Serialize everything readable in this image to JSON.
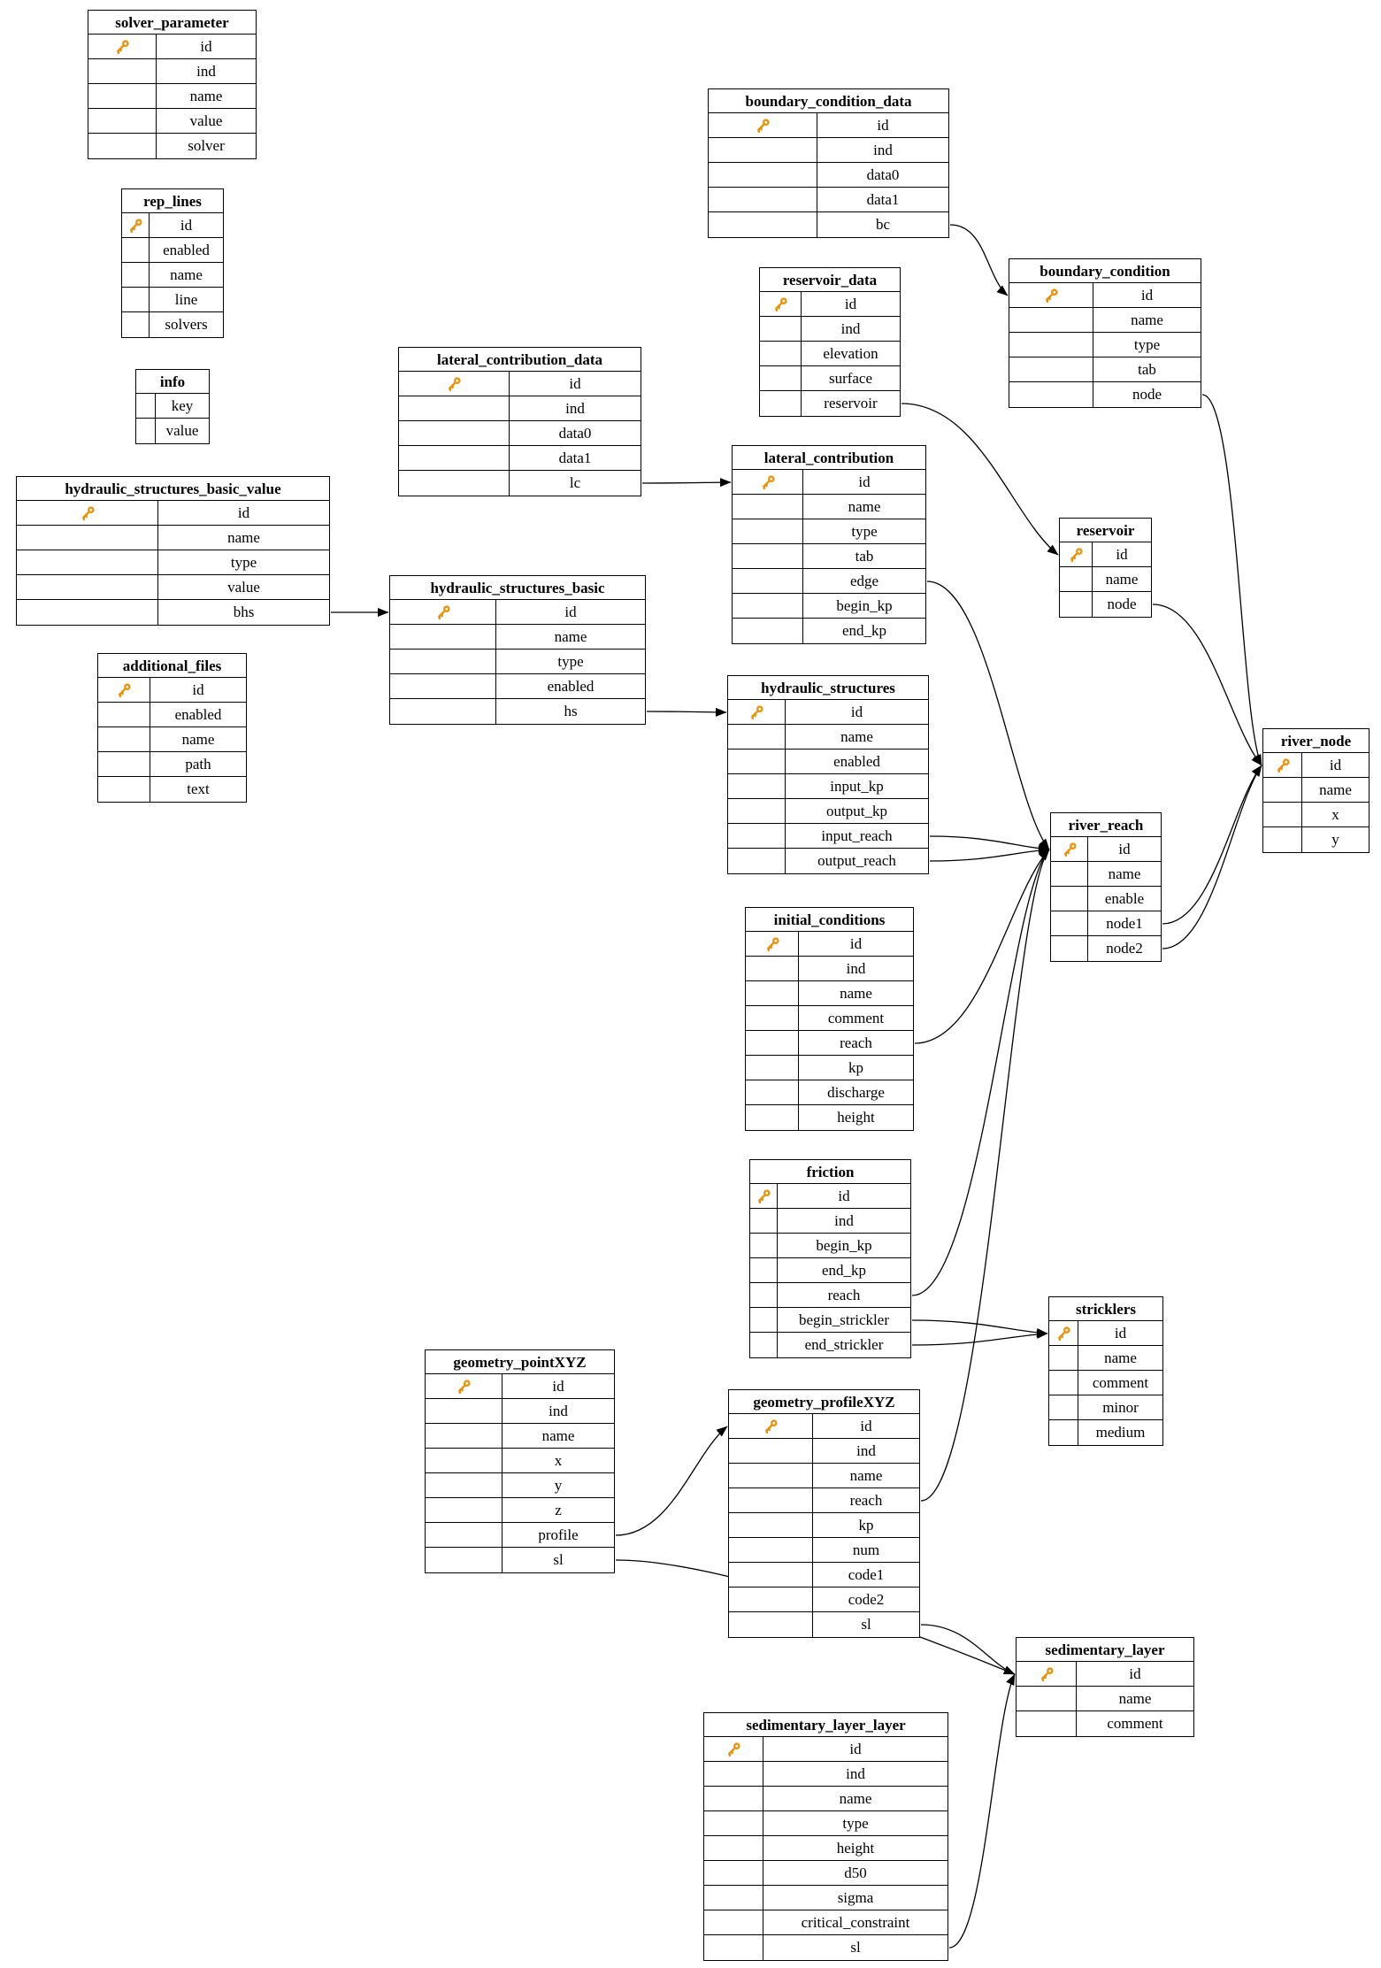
{
  "diagram": {
    "kind": "database-schema",
    "background": "#ffffff",
    "border_color": "#000000",
    "edge_color": "#000000",
    "key_icon_color": "#E8920E",
    "key_icon": "primary-key"
  },
  "tables": [
    {
      "name": "solver_parameter",
      "fields": [
        {
          "name": "id",
          "key": true
        },
        {
          "name": "ind"
        },
        {
          "name": "name"
        },
        {
          "name": "value"
        },
        {
          "name": "solver"
        }
      ]
    },
    {
      "name": "rep_lines",
      "fields": [
        {
          "name": "id",
          "key": true
        },
        {
          "name": "enabled"
        },
        {
          "name": "name"
        },
        {
          "name": "line"
        },
        {
          "name": "solvers"
        }
      ]
    },
    {
      "name": "info",
      "fields": [
        {
          "name": "key"
        },
        {
          "name": "value"
        }
      ]
    },
    {
      "name": "hydraulic_structures_basic_value",
      "fields": [
        {
          "name": "id",
          "key": true
        },
        {
          "name": "name"
        },
        {
          "name": "type"
        },
        {
          "name": "value"
        },
        {
          "name": "bhs"
        }
      ]
    },
    {
      "name": "additional_files",
      "fields": [
        {
          "name": "id",
          "key": true
        },
        {
          "name": "enabled"
        },
        {
          "name": "name"
        },
        {
          "name": "path"
        },
        {
          "name": "text"
        }
      ]
    },
    {
      "name": "lateral_contribution_data",
      "fields": [
        {
          "name": "id",
          "key": true
        },
        {
          "name": "ind"
        },
        {
          "name": "data0"
        },
        {
          "name": "data1"
        },
        {
          "name": "lc"
        }
      ]
    },
    {
      "name": "hydraulic_structures_basic",
      "fields": [
        {
          "name": "id",
          "key": true
        },
        {
          "name": "name"
        },
        {
          "name": "type"
        },
        {
          "name": "enabled"
        },
        {
          "name": "hs"
        }
      ]
    },
    {
      "name": "boundary_condition_data",
      "fields": [
        {
          "name": "id",
          "key": true
        },
        {
          "name": "ind"
        },
        {
          "name": "data0"
        },
        {
          "name": "data1"
        },
        {
          "name": "bc"
        }
      ]
    },
    {
      "name": "reservoir_data",
      "fields": [
        {
          "name": "id",
          "key": true
        },
        {
          "name": "ind"
        },
        {
          "name": "elevation"
        },
        {
          "name": "surface"
        },
        {
          "name": "reservoir"
        }
      ]
    },
    {
      "name": "boundary_condition",
      "fields": [
        {
          "name": "id",
          "key": true
        },
        {
          "name": "name"
        },
        {
          "name": "type"
        },
        {
          "name": "tab"
        },
        {
          "name": "node"
        }
      ]
    },
    {
      "name": "reservoir",
      "fields": [
        {
          "name": "id",
          "key": true
        },
        {
          "name": "name"
        },
        {
          "name": "node"
        }
      ]
    },
    {
      "name": "lateral_contribution",
      "fields": [
        {
          "name": "id",
          "key": true
        },
        {
          "name": "name"
        },
        {
          "name": "type"
        },
        {
          "name": "tab"
        },
        {
          "name": "edge"
        },
        {
          "name": "begin_kp"
        },
        {
          "name": "end_kp"
        }
      ]
    },
    {
      "name": "hydraulic_structures",
      "fields": [
        {
          "name": "id",
          "key": true
        },
        {
          "name": "name"
        },
        {
          "name": "enabled"
        },
        {
          "name": "input_kp"
        },
        {
          "name": "output_kp"
        },
        {
          "name": "input_reach"
        },
        {
          "name": "output_reach"
        }
      ]
    },
    {
      "name": "initial_conditions",
      "fields": [
        {
          "name": "id",
          "key": true
        },
        {
          "name": "ind"
        },
        {
          "name": "name"
        },
        {
          "name": "comment"
        },
        {
          "name": "reach"
        },
        {
          "name": "kp"
        },
        {
          "name": "discharge"
        },
        {
          "name": "height"
        }
      ]
    },
    {
      "name": "river_reach",
      "fields": [
        {
          "name": "id",
          "key": true
        },
        {
          "name": "name"
        },
        {
          "name": "enable"
        },
        {
          "name": "node1"
        },
        {
          "name": "node2"
        }
      ]
    },
    {
      "name": "river_node",
      "fields": [
        {
          "name": "id",
          "key": true
        },
        {
          "name": "name"
        },
        {
          "name": "x"
        },
        {
          "name": "y"
        }
      ]
    },
    {
      "name": "friction",
      "fields": [
        {
          "name": "id",
          "key": true
        },
        {
          "name": "ind"
        },
        {
          "name": "begin_kp"
        },
        {
          "name": "end_kp"
        },
        {
          "name": "reach"
        },
        {
          "name": "begin_strickler"
        },
        {
          "name": "end_strickler"
        }
      ]
    },
    {
      "name": "stricklers",
      "fields": [
        {
          "name": "id",
          "key": true
        },
        {
          "name": "name"
        },
        {
          "name": "comment"
        },
        {
          "name": "minor"
        },
        {
          "name": "medium"
        }
      ]
    },
    {
      "name": "geometry_pointXYZ",
      "fields": [
        {
          "name": "id",
          "key": true
        },
        {
          "name": "ind"
        },
        {
          "name": "name"
        },
        {
          "name": "x"
        },
        {
          "name": "y"
        },
        {
          "name": "z"
        },
        {
          "name": "profile"
        },
        {
          "name": "sl"
        }
      ]
    },
    {
      "name": "geometry_profileXYZ",
      "fields": [
        {
          "name": "id",
          "key": true
        },
        {
          "name": "ind"
        },
        {
          "name": "name"
        },
        {
          "name": "reach"
        },
        {
          "name": "kp"
        },
        {
          "name": "num"
        },
        {
          "name": "code1"
        },
        {
          "name": "code2"
        },
        {
          "name": "sl"
        }
      ]
    },
    {
      "name": "sedimentary_layer",
      "fields": [
        {
          "name": "id",
          "key": true
        },
        {
          "name": "name"
        },
        {
          "name": "comment"
        }
      ]
    },
    {
      "name": "sedimentary_layer_layer",
      "fields": [
        {
          "name": "id",
          "key": true
        },
        {
          "name": "ind"
        },
        {
          "name": "name"
        },
        {
          "name": "type"
        },
        {
          "name": "height"
        },
        {
          "name": "d50"
        },
        {
          "name": "sigma"
        },
        {
          "name": "critical_constraint"
        },
        {
          "name": "sl"
        }
      ]
    }
  ],
  "relations": [
    {
      "from_table": "hydraulic_structures_basic_value",
      "from_field": "bhs",
      "to_table": "hydraulic_structures_basic",
      "to_field": "id"
    },
    {
      "from_table": "hydraulic_structures_basic",
      "from_field": "hs",
      "to_table": "hydraulic_structures",
      "to_field": "id"
    },
    {
      "from_table": "lateral_contribution_data",
      "from_field": "lc",
      "to_table": "lateral_contribution",
      "to_field": "id"
    },
    {
      "from_table": "boundary_condition_data",
      "from_field": "bc",
      "to_table": "boundary_condition",
      "to_field": "id"
    },
    {
      "from_table": "reservoir_data",
      "from_field": "reservoir",
      "to_table": "reservoir",
      "to_field": "id"
    },
    {
      "from_table": "lateral_contribution",
      "from_field": "edge",
      "to_table": "river_reach",
      "to_field": "id"
    },
    {
      "from_table": "hydraulic_structures",
      "from_field": "input_reach",
      "to_table": "river_reach",
      "to_field": "id"
    },
    {
      "from_table": "hydraulic_structures",
      "from_field": "output_reach",
      "to_table": "river_reach",
      "to_field": "id"
    },
    {
      "from_table": "initial_conditions",
      "from_field": "reach",
      "to_table": "river_reach",
      "to_field": "id"
    },
    {
      "from_table": "friction",
      "from_field": "reach",
      "to_table": "river_reach",
      "to_field": "id"
    },
    {
      "from_table": "geometry_profileXYZ",
      "from_field": "reach",
      "to_table": "river_reach",
      "to_field": "id"
    },
    {
      "from_table": "friction",
      "from_field": "begin_strickler",
      "to_table": "stricklers",
      "to_field": "id"
    },
    {
      "from_table": "friction",
      "from_field": "end_strickler",
      "to_table": "stricklers",
      "to_field": "id"
    },
    {
      "from_table": "boundary_condition",
      "from_field": "node",
      "to_table": "river_node",
      "to_field": "id"
    },
    {
      "from_table": "reservoir",
      "from_field": "node",
      "to_table": "river_node",
      "to_field": "id"
    },
    {
      "from_table": "river_reach",
      "from_field": "node1",
      "to_table": "river_node",
      "to_field": "id"
    },
    {
      "from_table": "river_reach",
      "from_field": "node2",
      "to_table": "river_node",
      "to_field": "id"
    },
    {
      "from_table": "geometry_pointXYZ",
      "from_field": "profile",
      "to_table": "geometry_profileXYZ",
      "to_field": "id"
    },
    {
      "from_table": "geometry_pointXYZ",
      "from_field": "sl",
      "to_table": "sedimentary_layer",
      "to_field": "id"
    },
    {
      "from_table": "geometry_profileXYZ",
      "from_field": "sl",
      "to_table": "sedimentary_layer",
      "to_field": "id"
    },
    {
      "from_table": "sedimentary_layer_layer",
      "from_field": "sl",
      "to_table": "sedimentary_layer",
      "to_field": "id"
    }
  ]
}
